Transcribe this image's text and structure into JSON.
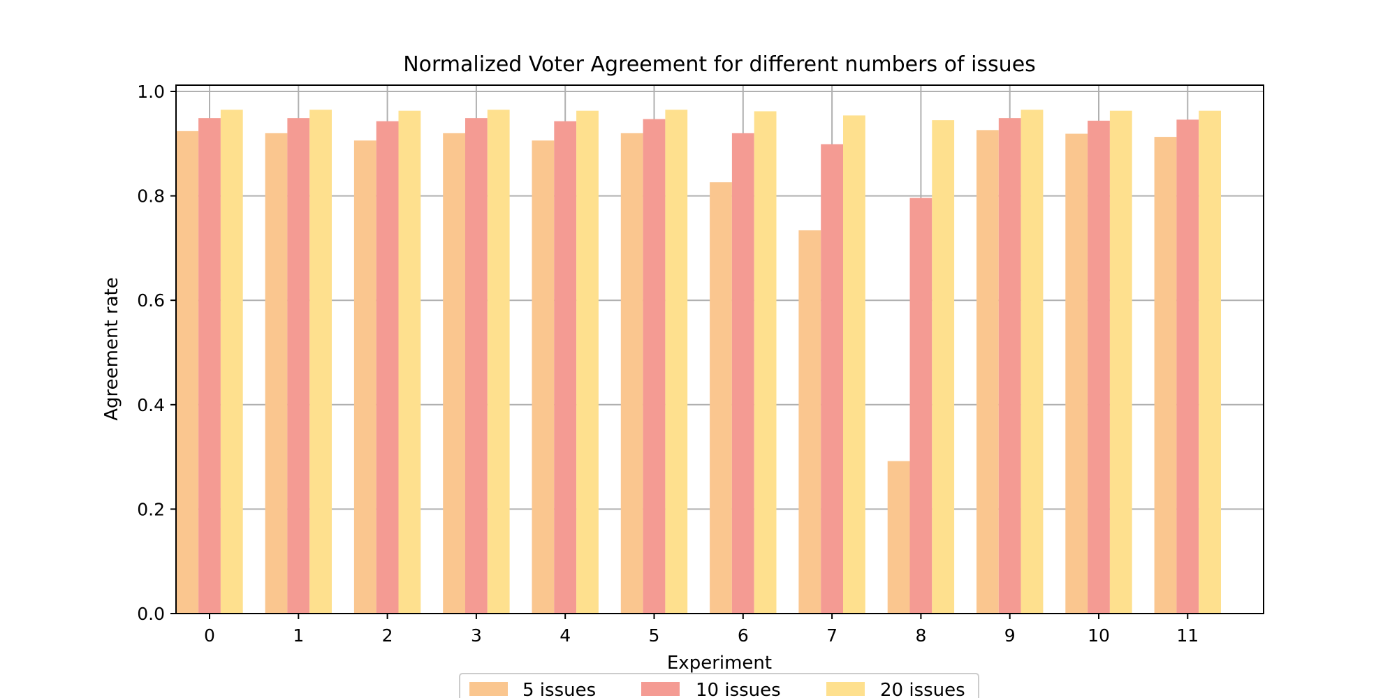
{
  "chart_data": {
    "type": "bar",
    "title": "Normalized Voter Agreement for different numbers of issues",
    "xlabel": "Experiment",
    "ylabel": "Agreement rate",
    "categories": [
      "0",
      "1",
      "2",
      "3",
      "4",
      "5",
      "6",
      "7",
      "8",
      "9",
      "10",
      "11"
    ],
    "ylim": [
      0,
      1.0
    ],
    "yticks": [
      "0.0",
      "0.2",
      "0.4",
      "0.6",
      "0.8",
      "1.0"
    ],
    "grid": true,
    "legend_position": "bottom-center",
    "series": [
      {
        "name": "5 issues",
        "color": "#FAC68F",
        "values": [
          0.924,
          0.92,
          0.906,
          0.92,
          0.906,
          0.92,
          0.826,
          0.734,
          0.292,
          0.926,
          0.919,
          0.913
        ]
      },
      {
        "name": "10 issues",
        "color": "#F49B93",
        "values": [
          0.949,
          0.949,
          0.943,
          0.949,
          0.943,
          0.947,
          0.92,
          0.899,
          0.796,
          0.949,
          0.944,
          0.946
        ]
      },
      {
        "name": "20 issues",
        "color": "#FEE08E",
        "values": [
          0.965,
          0.965,
          0.963,
          0.965,
          0.963,
          0.965,
          0.962,
          0.954,
          0.945,
          0.965,
          0.963,
          0.963
        ]
      }
    ]
  }
}
